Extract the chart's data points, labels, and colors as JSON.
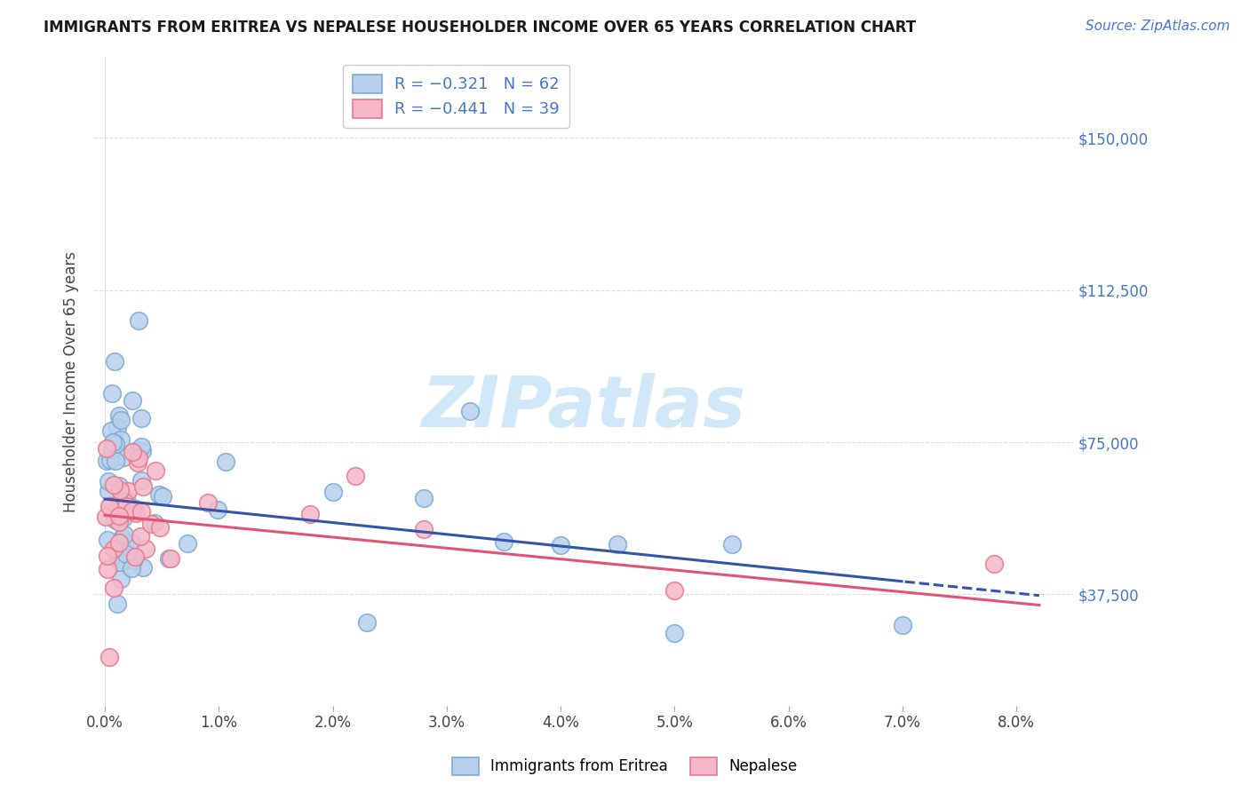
{
  "title": "IMMIGRANTS FROM ERITREA VS NEPALESE HOUSEHOLDER INCOME OVER 65 YEARS CORRELATION CHART",
  "source": "Source: ZipAtlas.com",
  "ylabel": "Householder Income Over 65 years",
  "ytick_labels": [
    "$37,500",
    "$75,000",
    "$112,500",
    "$150,000"
  ],
  "ytick_vals": [
    37500,
    75000,
    112500,
    150000
  ],
  "ylim": [
    10000,
    170000
  ],
  "xlim": [
    -0.1,
    8.5
  ],
  "legend1_label": "R = −0.321   N = 62",
  "legend2_label": "R = −0.441   N = 39",
  "series1_color": "#b8d0ed",
  "series2_color": "#f5b8c8",
  "series1_edge": "#7aaad4",
  "series2_edge": "#e8788a",
  "line1_color": "#3355aa",
  "line2_color": "#e05575",
  "watermark": "ZIPatlas",
  "watermark_color": "#d0e8f8",
  "bottom_legend1": "Immigrants from Eritrea",
  "bottom_legend2": "Nepalese",
  "grid_color": "#dddddd",
  "title_fontsize": 12,
  "source_fontsize": 11,
  "tick_fontsize": 12,
  "ylabel_fontsize": 12
}
